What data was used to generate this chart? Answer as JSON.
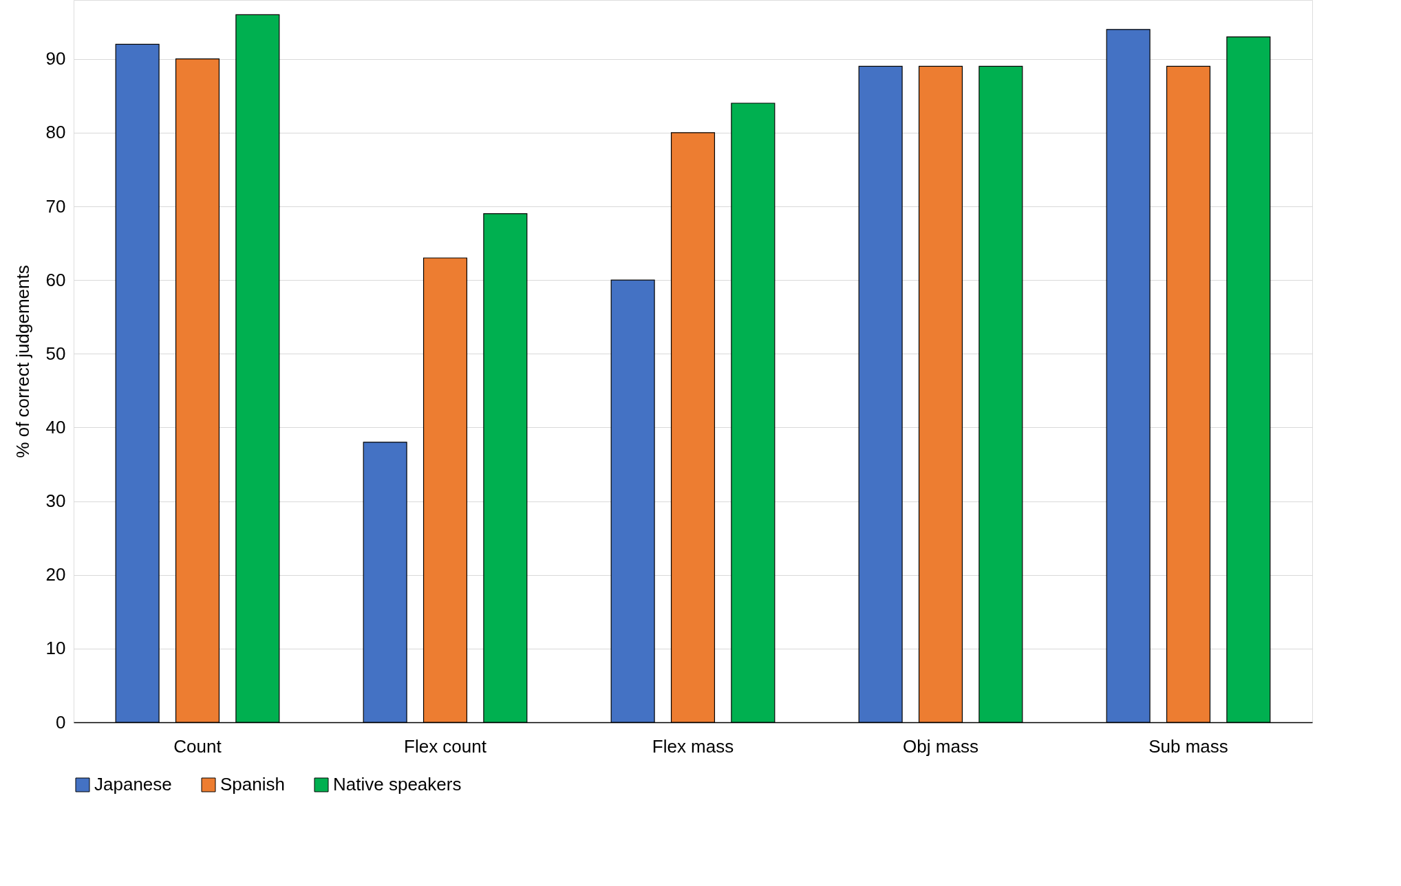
{
  "chart_data": {
    "type": "bar",
    "ylabel": "% of correct judgements",
    "categories": [
      "Count",
      "Flex count",
      "Flex mass",
      "Obj mass",
      "Sub mass"
    ],
    "series": [
      {
        "name": "Japanese",
        "color": "#4472c4",
        "values": [
          92,
          38,
          60,
          89,
          94
        ]
      },
      {
        "name": "Spanish",
        "color": "#ed7d31",
        "values": [
          90,
          63,
          80,
          89,
          89
        ]
      },
      {
        "name": "Native speakers",
        "color": "#00b050",
        "values": [
          96,
          69,
          84,
          89,
          93
        ]
      }
    ],
    "ylim": [
      0,
      98
    ],
    "yticks": [
      0,
      10,
      20,
      30,
      40,
      50,
      60,
      70,
      80,
      90
    ],
    "grid": "y",
    "legend": "bottom"
  }
}
